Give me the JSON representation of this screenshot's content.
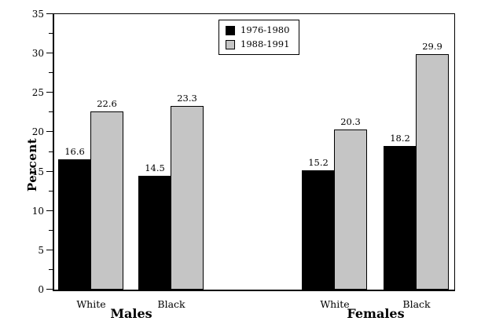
{
  "chart_data": {
    "type": "bar",
    "title": "",
    "ylabel": "Percent",
    "xlabel": "",
    "ylim": [
      0,
      35
    ],
    "ytick_step": 5,
    "yminor_step": 2.5,
    "grid": false,
    "legend_position": "top-center-inside",
    "value_labels": true,
    "categories": [
      "White",
      "Black",
      "White",
      "Black"
    ],
    "group_labels": [
      "Males",
      "Females"
    ],
    "series": [
      {
        "name": "1976-1980",
        "color": "#000000",
        "values": [
          16.6,
          14.5,
          15.2,
          18.2
        ]
      },
      {
        "name": "1988-1991",
        "color": "#c5c5c5",
        "values": [
          22.6,
          23.3,
          20.3,
          29.9
        ]
      }
    ]
  }
}
